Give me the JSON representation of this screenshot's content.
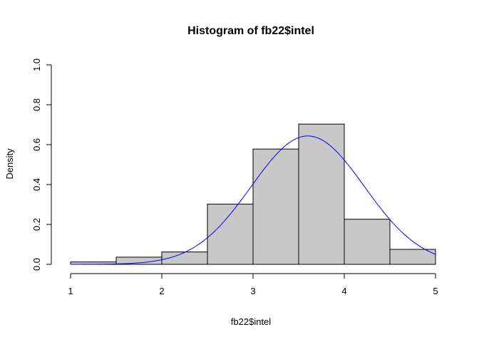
{
  "chart_data": {
    "type": "bar",
    "title": "Histogram of fb22$intel",
    "xlabel": "fb22$intel",
    "ylabel": "Density",
    "xlim": [
      1,
      5
    ],
    "ylim": [
      0,
      1
    ],
    "x_ticks": [
      "1",
      "2",
      "3",
      "4",
      "5"
    ],
    "y_ticks": [
      "0.0",
      "0.2",
      "0.4",
      "0.6",
      "0.8",
      "1.0"
    ],
    "grid": false,
    "legend": "none",
    "bins": [
      {
        "start": 1.0,
        "end": 1.5,
        "density": 0.012
      },
      {
        "start": 1.5,
        "end": 2.0,
        "density": 0.036
      },
      {
        "start": 2.0,
        "end": 2.5,
        "density": 0.062
      },
      {
        "start": 2.5,
        "end": 3.0,
        "density": 0.302
      },
      {
        "start": 3.0,
        "end": 3.5,
        "density": 0.578
      },
      {
        "start": 3.5,
        "end": 4.0,
        "density": 0.703
      },
      {
        "start": 4.0,
        "end": 4.5,
        "density": 0.226
      },
      {
        "start": 4.5,
        "end": 5.0,
        "density": 0.075
      }
    ],
    "curve": {
      "type": "normal-density",
      "mean": 3.6,
      "sd": 0.62,
      "range": [
        1,
        5
      ]
    },
    "colors": {
      "bar_fill": "#c8c8c8",
      "bar_stroke": "#000000",
      "curve": "#0000ff"
    }
  }
}
